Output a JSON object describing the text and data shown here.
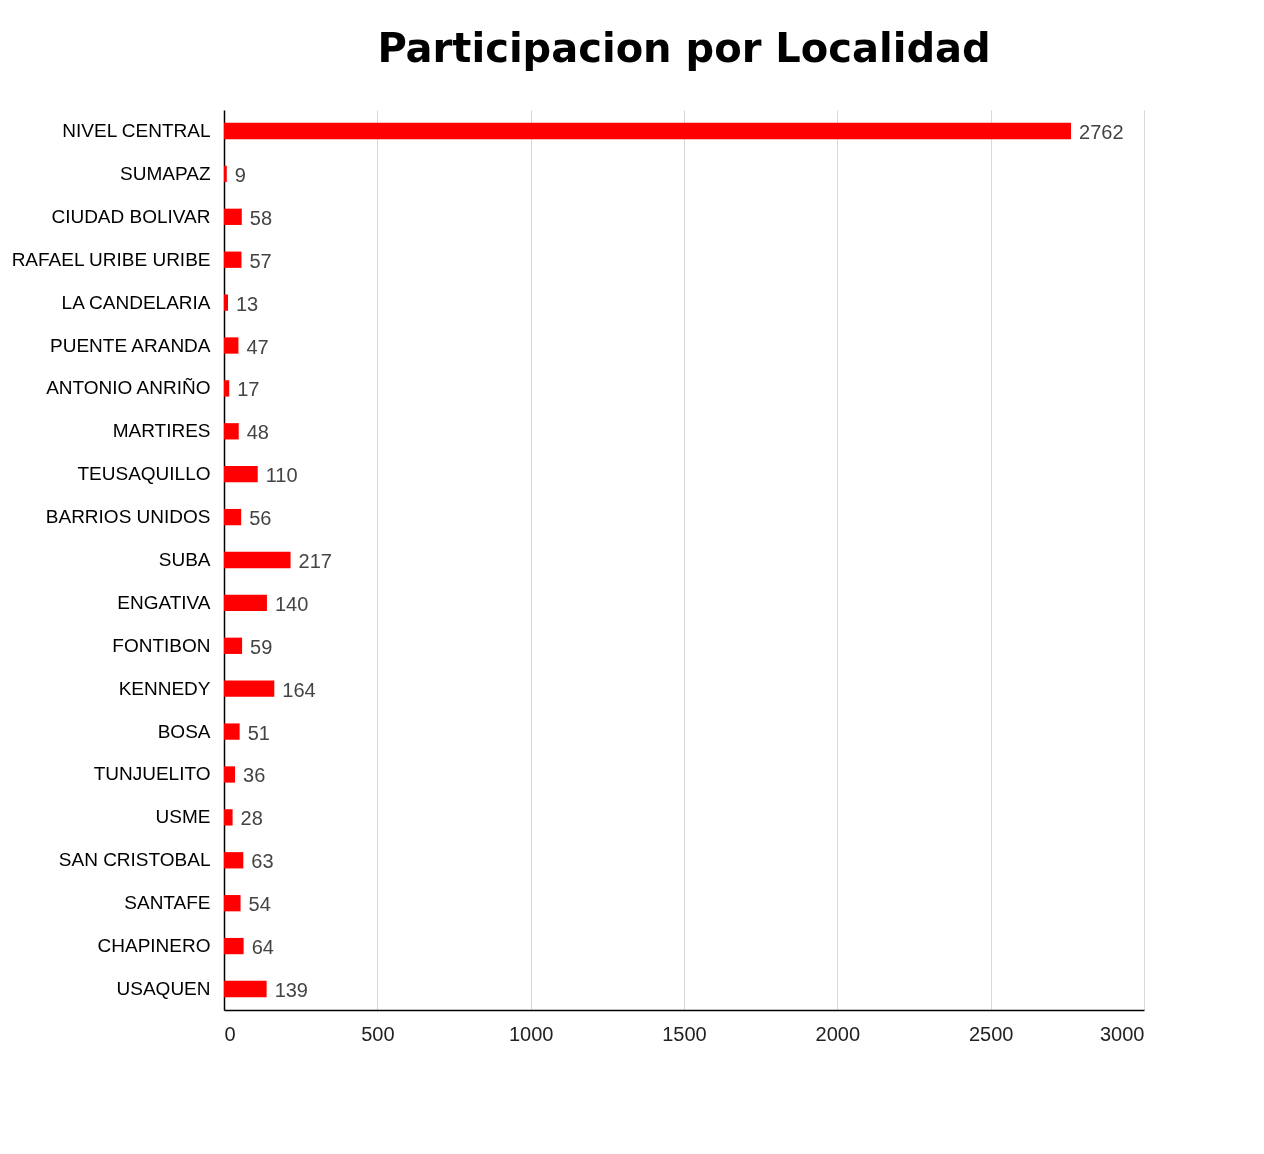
{
  "chart_data": {
    "type": "bar",
    "orientation": "horizontal",
    "title": "Participacion por Localidad",
    "categories": [
      "NIVEL CENTRAL",
      "SUMAPAZ",
      "CIUDAD BOLIVAR",
      "RAFAEL URIBE URIBE",
      "LA CANDELARIA",
      "PUENTE ARANDA",
      "ANTONIO ANRIÑO",
      "MARTIRES",
      "TEUSAQUILLO",
      "BARRIOS UNIDOS",
      "SUBA",
      "ENGATIVA",
      "FONTIBON",
      "KENNEDY",
      "BOSA",
      "TUNJUELITO",
      "USME",
      "SAN CRISTOBAL",
      "SANTAFE",
      "CHAPINERO",
      "USAQUEN"
    ],
    "values": [
      2762,
      9,
      58,
      57,
      13,
      47,
      17,
      48,
      110,
      56,
      217,
      140,
      59,
      164,
      51,
      36,
      28,
      63,
      54,
      64,
      139
    ],
    "color": "#ff0000",
    "xlim": [
      0,
      3000
    ],
    "xticks": [
      0,
      500,
      1000,
      1500,
      2000,
      2500,
      3000
    ],
    "grid": "x",
    "data_labels": true
  }
}
